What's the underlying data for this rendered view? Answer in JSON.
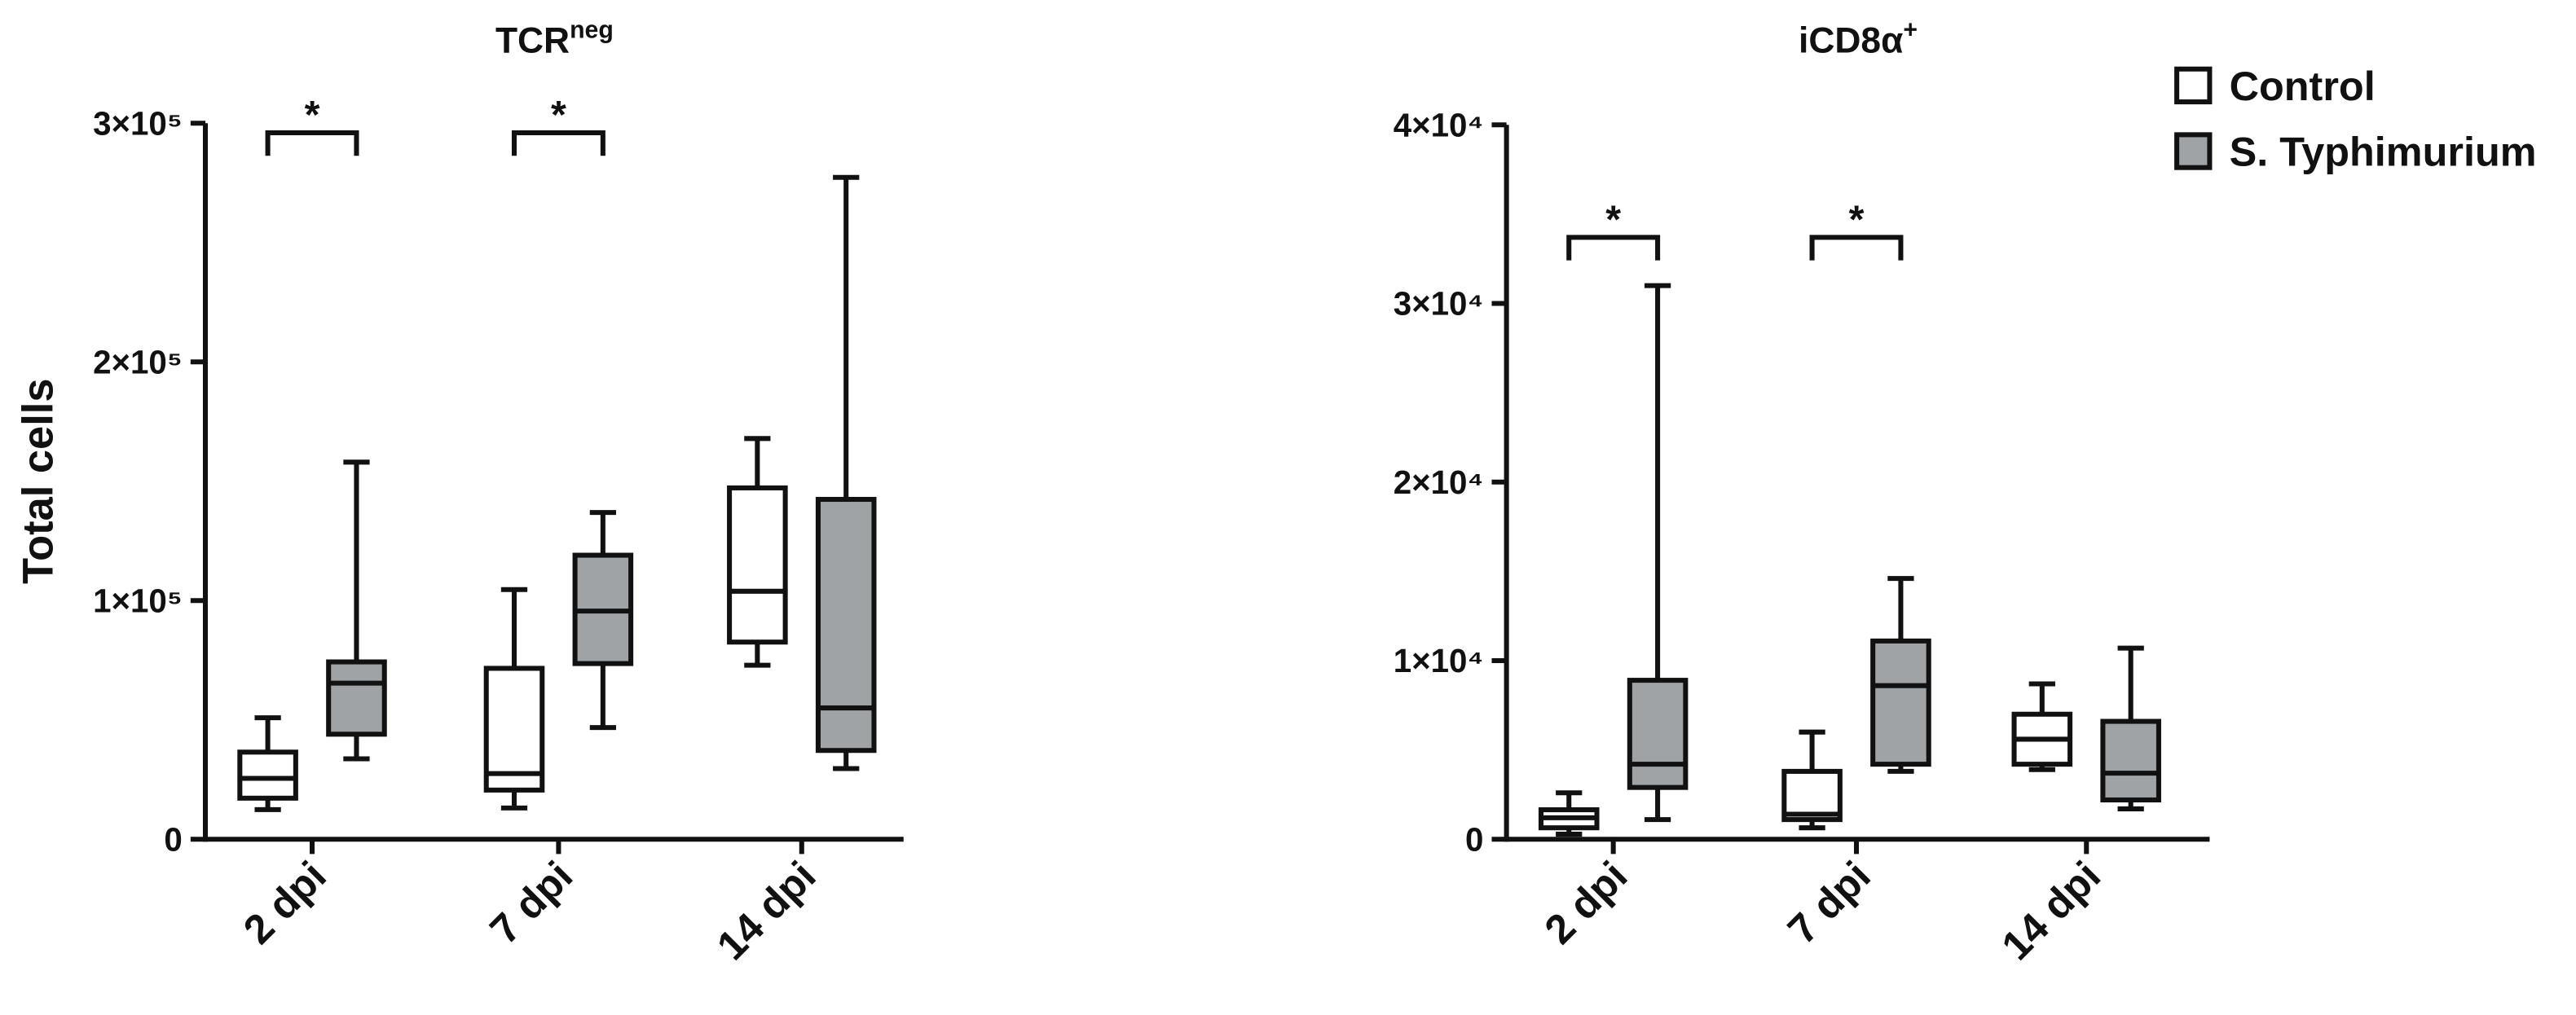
{
  "charts": [
    {
      "type": "box",
      "title": "TCR",
      "title_superscript": "neg",
      "ylabel": "Total cells",
      "categories": [
        "2 dpi",
        "7 dpi",
        "14 dpi"
      ],
      "ylim": [
        0,
        300000
      ],
      "yticks": [
        0,
        {
          "value": 100000,
          "label": "1×10⁵"
        },
        {
          "value": 200000,
          "label": "2×10⁵"
        },
        {
          "value": 300000,
          "label": "3×10⁵"
        }
      ],
      "series": [
        {
          "values": [
            {
              "min": 12400,
              "q1": 17200,
              "median": 25500,
              "q3": 36500,
              "max": 50900
            },
            {
              "min": 13100,
              "q1": 20600,
              "median": 27500,
              "q3": 71600,
              "max": 104600
            },
            {
              "min": 72900,
              "q1": 82600,
              "median": 103900,
              "q3": 147200,
              "max": 167900
            }
          ]
        },
        {
          "values": [
            {
              "min": 33700,
              "q1": 44000,
              "median": 65400,
              "q3": 74300,
              "max": 158000
            },
            {
              "min": 46800,
              "q1": 73600,
              "median": 95600,
              "q3": 119000,
              "max": 136900
            },
            {
              "min": 29600,
              "q1": 37200,
              "median": 55000,
              "q3": 142400,
              "max": 277300
            }
          ]
        }
      ],
      "annotations": [
        {
          "text": "*",
          "x": "2 dpi",
          "y": 296000
        },
        {
          "text": "*",
          "x": "7 dpi",
          "y": 296000
        }
      ]
    },
    {
      "type": "box",
      "title": "iCD8α",
      "title_superscript": "+",
      "categories": [
        "2 dpi",
        "7 dpi",
        "14 dpi"
      ],
      "ylim": [
        0,
        40000
      ],
      "yticks": [
        0,
        {
          "value": 10000,
          "label": "1×10⁴"
        },
        {
          "value": 20000,
          "label": "2×10⁴"
        },
        {
          "value": 30000,
          "label": "3×10⁴"
        },
        {
          "value": 40000,
          "label": "4×10⁴"
        }
      ],
      "series": [
        {
          "values": [
            {
              "min": 280,
              "q1": 640,
              "median": 1200,
              "q3": 1650,
              "max": 2600
            },
            {
              "min": 640,
              "q1": 1100,
              "median": 1400,
              "q3": 3800,
              "max": 6000
            },
            {
              "min": 3900,
              "q1": 4200,
              "median": 5600,
              "q3": 7000,
              "max": 8700
            }
          ]
        },
        {
          "values": [
            {
              "min": 1100,
              "q1": 2900,
              "median": 4200,
              "q3": 8900,
              "max": 31000
            },
            {
              "min": 3800,
              "q1": 4200,
              "median": 8600,
              "q3": 11100,
              "max": 14600
            },
            {
              "min": 1700,
              "q1": 2200,
              "median": 3700,
              "q3": 6600,
              "max": 10700
            }
          ]
        }
      ],
      "annotations": [
        {
          "text": "*",
          "x": "2 dpi",
          "y": 33700
        },
        {
          "text": "*",
          "x": "7 dpi",
          "y": 33700
        }
      ]
    }
  ],
  "legend": {
    "position": "top-right",
    "entries": [
      {
        "name": "Control",
        "color": "#ffffff"
      },
      {
        "name": "S. Typhimurium",
        "color": "#a0a3a6"
      }
    ]
  }
}
